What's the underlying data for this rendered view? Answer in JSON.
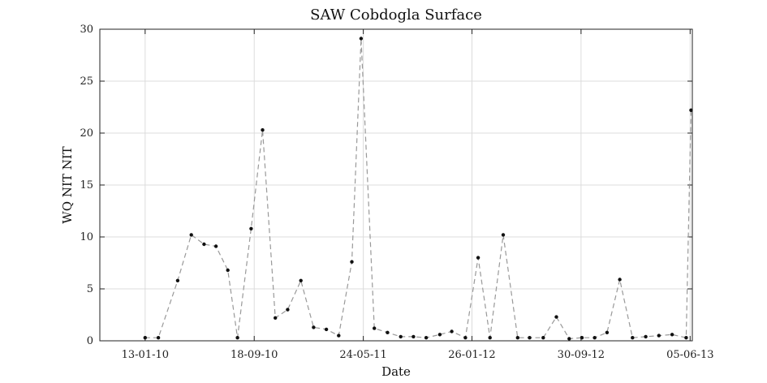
{
  "chart_data": {
    "type": "line",
    "title": "SAW Cobdogla Surface",
    "xlabel": "Date",
    "ylabel": "WQ NIT NIT",
    "x_is_date": true,
    "xlim": [
      "2009-10-02",
      "2013-06-10"
    ],
    "ylim": [
      0,
      30
    ],
    "yticks": [
      0,
      5,
      10,
      15,
      20,
      25,
      30
    ],
    "xticks": [
      {
        "date": "2010-01-13",
        "label": "13-01-10"
      },
      {
        "date": "2010-09-18",
        "label": "18-09-10"
      },
      {
        "date": "2011-05-24",
        "label": "24-05-11"
      },
      {
        "date": "2012-01-26",
        "label": "26-01-12"
      },
      {
        "date": "2012-09-30",
        "label": "30-09-12"
      },
      {
        "date": "2013-06-05",
        "label": "05-06-13"
      }
    ],
    "grid": true,
    "line_style": "dashed",
    "line_color": "#999999",
    "marker_color": "#111111",
    "series": [
      {
        "x": [
          "2010-01-13",
          "2010-02-12",
          "2010-03-28",
          "2010-04-28",
          "2010-05-27",
          "2010-06-23",
          "2010-07-20",
          "2010-08-11",
          "2010-09-11",
          "2010-10-07",
          "2010-11-05",
          "2010-12-03",
          "2011-01-02",
          "2011-01-31",
          "2011-03-01",
          "2011-03-29",
          "2011-04-28",
          "2011-05-19",
          "2011-06-18",
          "2011-07-18",
          "2011-08-17",
          "2011-09-15",
          "2011-10-14",
          "2011-11-14",
          "2011-12-11",
          "2012-01-11",
          "2012-02-09",
          "2012-03-07",
          "2012-04-06",
          "2012-05-09",
          "2012-06-05",
          "2012-07-06",
          "2012-08-05",
          "2012-09-03",
          "2012-10-02",
          "2012-10-31",
          "2012-11-28",
          "2012-12-27",
          "2013-01-25",
          "2013-02-24",
          "2013-03-26",
          "2013-04-25",
          "2013-05-27",
          "2013-06-07"
        ],
        "y": [
          0.3,
          0.3,
          5.8,
          10.2,
          9.3,
          9.1,
          6.8,
          0.3,
          10.8,
          20.3,
          2.2,
          3.0,
          5.8,
          1.3,
          1.1,
          0.5,
          7.6,
          29.1,
          1.2,
          0.8,
          0.4,
          0.4,
          0.3,
          0.6,
          0.9,
          0.3,
          8.0,
          0.3,
          10.2,
          0.3,
          0.3,
          0.3,
          2.3,
          0.2,
          0.3,
          0.3,
          0.8,
          5.9,
          0.3,
          0.4,
          0.5,
          0.6,
          0.3,
          22.2
        ]
      }
    ]
  }
}
